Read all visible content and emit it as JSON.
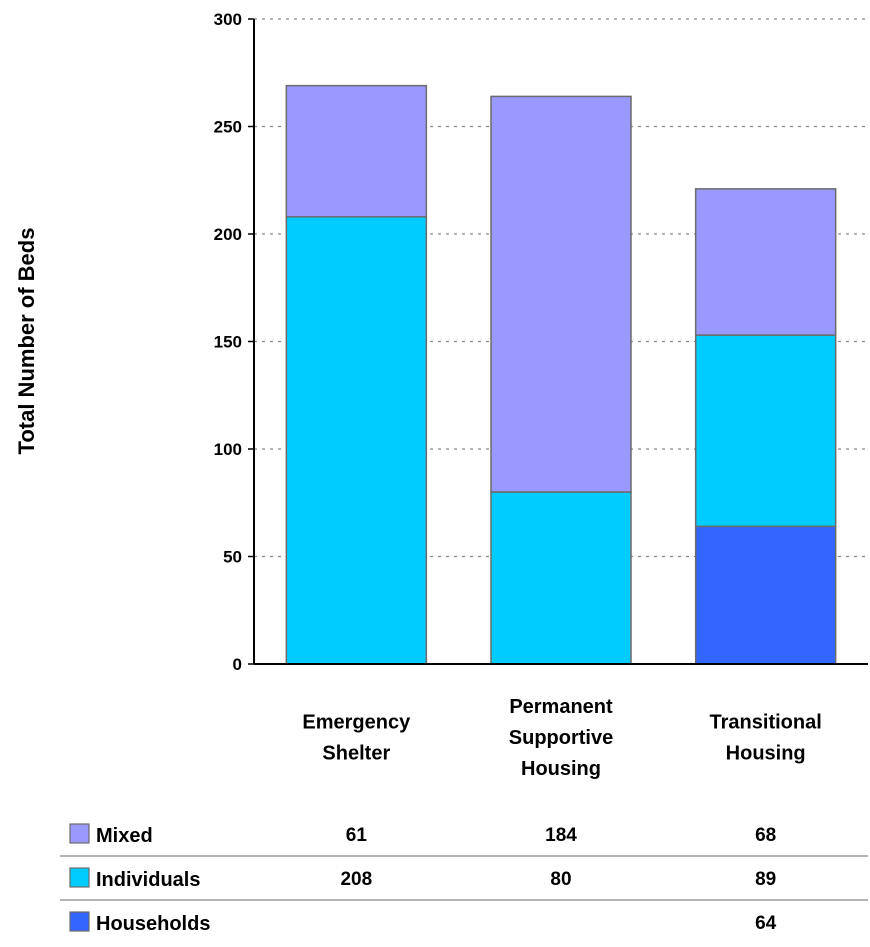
{
  "chart_data": {
    "type": "bar",
    "stacked": true,
    "title": "",
    "xlabel": "",
    "ylabel": "Total Number of Beds",
    "ylim": [
      0,
      300
    ],
    "yticks": [
      0,
      50,
      100,
      150,
      200,
      250,
      300
    ],
    "grid": true,
    "categories": [
      [
        "Emergency",
        "Shelter"
      ],
      [
        "Permanent",
        "Supportive",
        "Housing"
      ],
      [
        "Transitional",
        "Housing"
      ]
    ],
    "series": [
      {
        "name": "Households",
        "values": [
          null,
          null,
          64
        ],
        "color": "#3366ff"
      },
      {
        "name": "Individuals",
        "values": [
          208,
          80,
          89
        ],
        "color": "#00ccff"
      },
      {
        "name": "Mixed",
        "values": [
          61,
          184,
          68
        ],
        "color": "#9999ff"
      }
    ],
    "data_table_order": [
      "Mixed",
      "Individuals",
      "Households"
    ],
    "legend_placement": "data table below chart"
  }
}
